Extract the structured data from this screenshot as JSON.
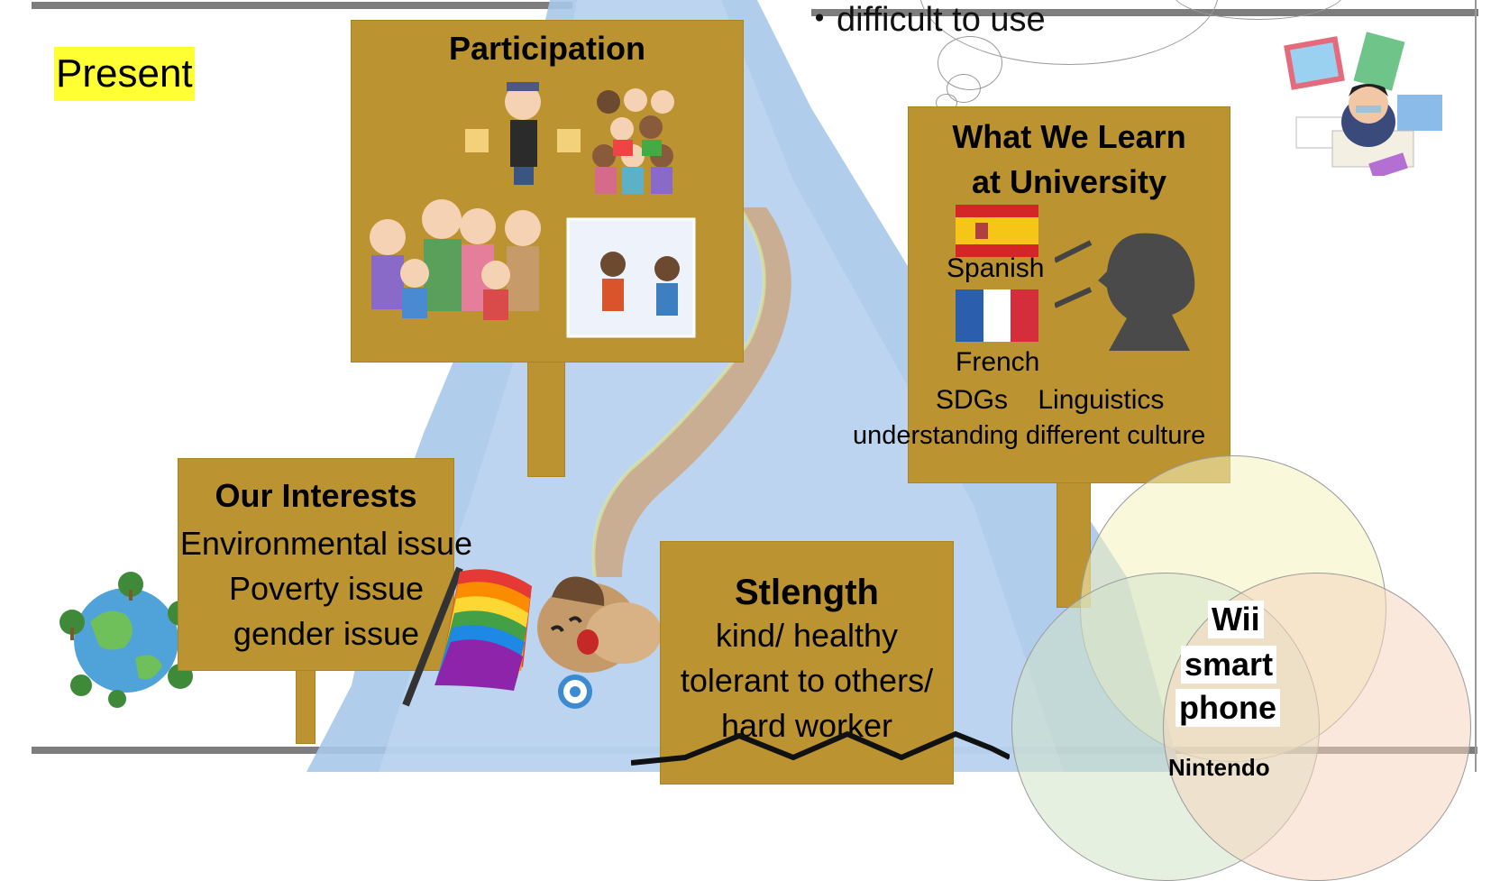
{
  "present_label": "Present",
  "thought_text": "・difficult to use",
  "signs": {
    "participation": {
      "title": "Participation"
    },
    "learn": {
      "title_line1": "What We Learn",
      "title_line2": "at University",
      "spanish": "Spanish",
      "french": "French",
      "topics": "SDGs    Linguistics",
      "culture": "understanding different culture"
    },
    "interests": {
      "title": "Our Interests",
      "items": [
        "Environmental issue",
        "Poverty issue",
        "gender issue"
      ]
    },
    "strength": {
      "title": "Stlength",
      "lines": [
        "kind/ healthy",
        "tolerant to others/",
        "hard worker"
      ]
    }
  },
  "venn": {
    "center_lines": [
      "Wii",
      "smart",
      "phone"
    ],
    "bottom_label": "Nintendo"
  },
  "colors": {
    "sign": "#bb9330",
    "highlight": "#ffff33",
    "river": "#a9c8ea",
    "path": "#c9ae94"
  },
  "icons": [
    "people-illustration",
    "earth-icon",
    "rainbow-flag-icon",
    "dog-mascot-icon",
    "speaking-head-icon",
    "spanish-flag-icon",
    "french-flag-icon",
    "stressed-student-icon"
  ]
}
